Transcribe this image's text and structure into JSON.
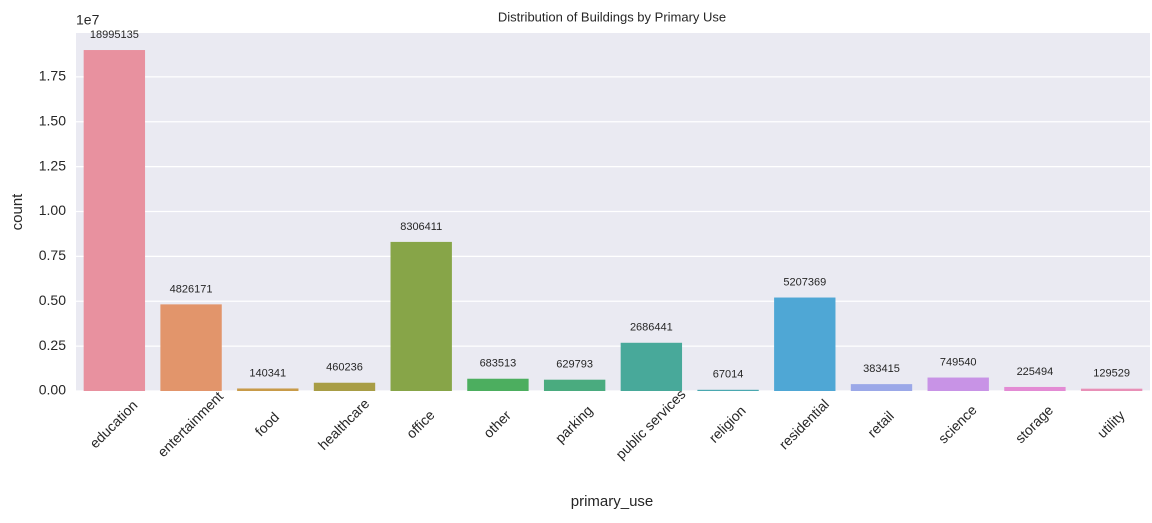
{
  "chart_data": {
    "type": "bar",
    "title": "Distribution of Buildings by Primary Use",
    "x_label": "primary_use",
    "y_label": "count",
    "y_offset_label": "1e7",
    "categories": [
      "education",
      "entertainment",
      "food",
      "healthcare",
      "office",
      "other",
      "parking",
      "public services",
      "religion",
      "residential",
      "retail",
      "science",
      "storage",
      "utility"
    ],
    "values": [
      18995135,
      4826171,
      140341,
      460236,
      8306411,
      683513,
      629793,
      2686441,
      67014,
      5207369,
      383415,
      749540,
      225494,
      129529
    ],
    "colors": [
      "#e8919f",
      "#e2956b",
      "#c89b49",
      "#a89d45",
      "#87a548",
      "#4cae5f",
      "#4aab7f",
      "#48a99a",
      "#4aa8b0",
      "#4fa7d5",
      "#9ba8e8",
      "#c893e6",
      "#e38bd4",
      "#e890b7"
    ],
    "ylim": [
      0,
      19944892
    ],
    "yticks": [
      {
        "value": 0,
        "label": "0.00"
      },
      {
        "value": 2500000,
        "label": "0.25"
      },
      {
        "value": 5000000,
        "label": "0.50"
      },
      {
        "value": 7500000,
        "label": "0.75"
      },
      {
        "value": 10000000,
        "label": "1.00"
      },
      {
        "value": 12500000,
        "label": "1.25"
      },
      {
        "value": 15000000,
        "label": "1.50"
      },
      {
        "value": 17500000,
        "label": "1.75"
      }
    ],
    "grid": true
  }
}
